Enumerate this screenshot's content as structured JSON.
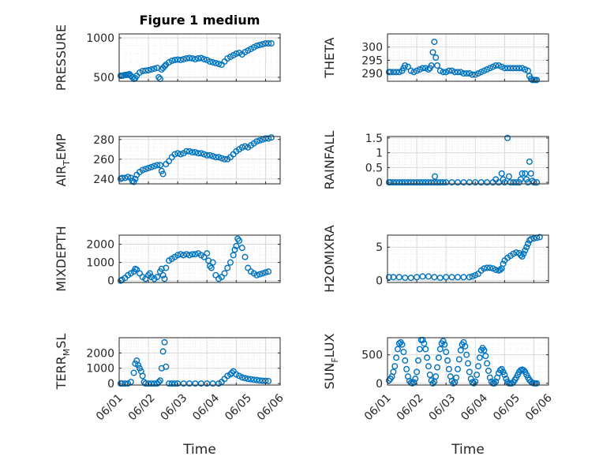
{
  "chart_data": [
    {
      "type": "scatter",
      "title": "Figure 1 medium",
      "ylabel": "PRESSURE",
      "xlabel": "",
      "ylim": [
        450,
        1050
      ],
      "yticks": [
        500,
        1000
      ],
      "grid": true,
      "x": [
        0.05,
        0.1,
        0.15,
        0.2,
        0.25,
        0.3,
        0.35,
        0.4,
        0.45,
        0.5,
        0.55,
        0.6,
        0.7,
        0.8,
        0.9,
        1.0,
        1.1,
        1.2,
        1.3,
        1.35,
        1.4,
        1.45,
        1.5,
        1.55,
        1.6,
        1.7,
        1.8,
        1.9,
        2.0,
        2.1,
        2.2,
        2.3,
        2.4,
        2.5,
        2.6,
        2.7,
        2.8,
        2.9,
        3.0,
        3.1,
        3.2,
        3.3,
        3.4,
        3.5,
        3.6,
        3.7,
        3.8,
        3.9,
        4.0,
        4.1,
        4.2,
        4.3,
        4.4,
        4.5,
        4.6,
        4.7,
        4.8,
        4.9,
        5.0,
        5.1,
        5.2
      ],
      "y": [
        520,
        520,
        525,
        530,
        530,
        535,
        540,
        520,
        500,
        480,
        490,
        520,
        560,
        580,
        585,
        590,
        600,
        610,
        620,
        500,
        480,
        600,
        620,
        640,
        660,
        690,
        710,
        720,
        725,
        720,
        730,
        740,
        745,
        740,
        730,
        740,
        745,
        730,
        720,
        700,
        690,
        680,
        670,
        660,
        700,
        740,
        760,
        780,
        800,
        810,
        790,
        820,
        840,
        860,
        880,
        900,
        910,
        920,
        930,
        930,
        930
      ],
      "series": [
        {
          "color": "#0072BD"
        }
      ]
    },
    {
      "type": "scatter",
      "ylabel": "THETA",
      "xlabel": "",
      "ylim": [
        287,
        305
      ],
      "yticks": [
        290,
        295,
        300
      ],
      "grid": true,
      "x": [
        0.05,
        0.1,
        0.2,
        0.3,
        0.4,
        0.5,
        0.55,
        0.6,
        0.7,
        0.8,
        0.9,
        1.0,
        1.1,
        1.2,
        1.3,
        1.4,
        1.45,
        1.5,
        1.55,
        1.6,
        1.65,
        1.7,
        1.8,
        1.9,
        2.0,
        2.1,
        2.2,
        2.3,
        2.4,
        2.5,
        2.6,
        2.7,
        2.8,
        2.9,
        3.0,
        3.1,
        3.2,
        3.3,
        3.4,
        3.5,
        3.6,
        3.7,
        3.8,
        3.9,
        4.0,
        4.1,
        4.2,
        4.3,
        4.4,
        4.5,
        4.6,
        4.7,
        4.8,
        4.85,
        4.9,
        4.95,
        5.0,
        5.05,
        5.1
      ],
      "y": [
        290.5,
        290.5,
        290.5,
        290.5,
        290.5,
        291,
        292,
        293,
        292.5,
        291,
        290.5,
        291,
        291.5,
        292,
        292,
        291.5,
        292,
        293,
        298,
        302,
        296,
        293,
        291,
        290.5,
        290.5,
        291,
        291,
        290.5,
        290.5,
        290.5,
        290,
        290,
        290,
        289.5,
        289.5,
        290,
        290.5,
        291,
        291.5,
        292,
        292.5,
        293,
        293,
        292.5,
        292,
        292,
        292,
        292,
        292,
        292,
        292,
        291.5,
        291,
        289,
        288,
        287.5,
        287.5,
        287.5,
        287.5
      ],
      "series": [
        {
          "color": "#0072BD"
        }
      ]
    },
    {
      "type": "scatter",
      "ylabel": "AIR",
      "ylabel_sub": "T",
      "ylabel_rest": "EMP",
      "xlabel": "",
      "ylim": [
        235,
        283
      ],
      "yticks": [
        240,
        260,
        280
      ],
      "grid": true,
      "x": [
        0.05,
        0.1,
        0.2,
        0.3,
        0.4,
        0.45,
        0.5,
        0.55,
        0.6,
        0.7,
        0.8,
        0.9,
        1.0,
        1.1,
        1.2,
        1.3,
        1.4,
        1.45,
        1.5,
        1.6,
        1.7,
        1.8,
        1.9,
        2.0,
        2.1,
        2.2,
        2.3,
        2.4,
        2.5,
        2.6,
        2.7,
        2.8,
        2.9,
        3.0,
        3.1,
        3.2,
        3.3,
        3.4,
        3.5,
        3.6,
        3.7,
        3.8,
        3.9,
        4.0,
        4.1,
        4.2,
        4.3,
        4.4,
        4.5,
        4.6,
        4.7,
        4.8,
        4.9,
        5.0,
        5.1,
        5.2
      ],
      "y": [
        240,
        241,
        241,
        242,
        241,
        238,
        237,
        240,
        244,
        247,
        249,
        250,
        251,
        252,
        253,
        254,
        254,
        248,
        245,
        255,
        258,
        262,
        265,
        266,
        265,
        266,
        268,
        268,
        267,
        267,
        266,
        266,
        265,
        264,
        264,
        263,
        262,
        262,
        261,
        260,
        260,
        262,
        265,
        268,
        270,
        272,
        273,
        272,
        274,
        276,
        278,
        279,
        280,
        281,
        281,
        282
      ],
      "series": [
        {
          "color": "#0072BD"
        }
      ]
    },
    {
      "type": "scatter",
      "ylabel": "RAINFALL",
      "xlabel": "",
      "ylim": [
        -0.05,
        1.55
      ],
      "yticks": [
        0,
        0.5,
        1,
        1.5
      ],
      "grid": true,
      "x": [
        0.05,
        0.1,
        0.2,
        0.3,
        0.4,
        0.5,
        0.6,
        0.7,
        0.8,
        0.9,
        1.0,
        1.1,
        1.2,
        1.3,
        1.4,
        1.5,
        1.6,
        1.62,
        1.7,
        1.8,
        1.9,
        2.0,
        2.2,
        2.4,
        2.6,
        2.8,
        3.0,
        3.2,
        3.4,
        3.6,
        3.7,
        3.8,
        3.9,
        3.95,
        4.0,
        4.1,
        4.15,
        4.2,
        4.3,
        4.4,
        4.5,
        4.55,
        4.6,
        4.7,
        4.75,
        4.8,
        4.85,
        4.9,
        4.95,
        5.0,
        5.1
      ],
      "y": [
        0,
        0,
        0,
        0,
        0,
        0,
        0,
        0,
        0,
        0,
        0,
        0,
        0,
        0,
        0,
        0,
        0,
        0.2,
        0,
        0,
        0,
        0,
        0,
        0,
        0,
        0,
        0,
        0,
        0,
        0,
        0.1,
        0,
        0.3,
        0.1,
        0,
        1.5,
        0.2,
        0,
        0,
        0,
        0,
        0.1,
        0.3,
        0.3,
        0.1,
        0,
        0.7,
        0.3,
        0.05,
        0,
        0
      ],
      "series": [
        {
          "color": "#0072BD"
        }
      ]
    },
    {
      "type": "scatter",
      "ylabel": "MIXDEPTH",
      "xlabel": "",
      "ylim": [
        -100,
        2500
      ],
      "yticks": [
        0,
        1000,
        2000
      ],
      "grid": true,
      "x": [
        0.05,
        0.1,
        0.2,
        0.3,
        0.4,
        0.5,
        0.55,
        0.6,
        0.7,
        0.8,
        0.9,
        1.0,
        1.05,
        1.1,
        1.2,
        1.3,
        1.4,
        1.45,
        1.5,
        1.55,
        1.6,
        1.7,
        1.8,
        1.9,
        2.0,
        2.1,
        2.2,
        2.3,
        2.4,
        2.5,
        2.6,
        2.7,
        2.8,
        2.9,
        3.0,
        3.05,
        3.1,
        3.15,
        3.2,
        3.3,
        3.4,
        3.5,
        3.6,
        3.7,
        3.8,
        3.9,
        3.95,
        4.0,
        4.05,
        4.1,
        4.2,
        4.3,
        4.4,
        4.5,
        4.6,
        4.7,
        4.8,
        4.9,
        5.0,
        5.1
      ],
      "y": [
        0,
        50,
        150,
        300,
        400,
        500,
        650,
        600,
        400,
        200,
        100,
        300,
        400,
        200,
        100,
        200,
        500,
        650,
        300,
        100,
        700,
        1100,
        1200,
        1300,
        1400,
        1450,
        1400,
        1450,
        1400,
        1450,
        1450,
        1500,
        1400,
        1300,
        1500,
        1100,
        800,
        700,
        1000,
        300,
        100,
        200,
        400,
        700,
        1000,
        1400,
        1700,
        1900,
        2300,
        2200,
        1800,
        1300,
        700,
        500,
        400,
        300,
        350,
        400,
        450,
        500
      ],
      "series": [
        {
          "color": "#0072BD"
        }
      ]
    },
    {
      "type": "scatter",
      "ylabel": "H2OMIXRA",
      "xlabel": "",
      "ylim": [
        -0.3,
        6.8
      ],
      "yticks": [
        0,
        5
      ],
      "grid": true,
      "x": [
        0.05,
        0.2,
        0.4,
        0.6,
        0.8,
        1.0,
        1.2,
        1.4,
        1.6,
        1.8,
        2.0,
        2.2,
        2.4,
        2.6,
        2.8,
        2.9,
        3.0,
        3.1,
        3.2,
        3.3,
        3.4,
        3.5,
        3.6,
        3.7,
        3.8,
        3.85,
        3.9,
        3.95,
        4.0,
        4.1,
        4.2,
        4.3,
        4.4,
        4.5,
        4.55,
        4.6,
        4.65,
        4.7,
        4.75,
        4.8,
        4.85,
        4.9,
        5.0,
        5.1,
        5.2
      ],
      "y": [
        0.5,
        0.5,
        0.5,
        0.4,
        0.4,
        0.5,
        0.6,
        0.6,
        0.5,
        0.4,
        0.5,
        0.5,
        0.5,
        0.5,
        0.5,
        0.6,
        0.8,
        1.0,
        1.5,
        1.8,
        1.9,
        1.9,
        1.8,
        1.6,
        1.5,
        1.6,
        1.8,
        2.5,
        3.0,
        3.4,
        3.7,
        4.0,
        4.2,
        4.1,
        3.8,
        3.6,
        4.0,
        4.5,
        5.0,
        5.5,
        6.0,
        6.2,
        6.3,
        6.4,
        6.5
      ],
      "series": [
        {
          "color": "#0072BD"
        }
      ]
    },
    {
      "type": "scatter",
      "ylabel": "TERR",
      "ylabel_sub": "M",
      "ylabel_rest": "SL",
      "xlabel": "Time",
      "xticklabels": [
        "06/01",
        "06/02",
        "06/03",
        "06/04",
        "06/05",
        "06/06"
      ],
      "ylim": [
        -100,
        3000
      ],
      "yticks": [
        0,
        1000,
        2000
      ],
      "grid": true,
      "x": [
        0.05,
        0.1,
        0.2,
        0.3,
        0.4,
        0.5,
        0.55,
        0.6,
        0.65,
        0.7,
        0.75,
        0.8,
        0.85,
        0.9,
        1.0,
        1.1,
        1.2,
        1.3,
        1.35,
        1.4,
        1.45,
        1.5,
        1.55,
        1.6,
        1.7,
        1.8,
        1.9,
        2.0,
        2.2,
        2.4,
        2.6,
        2.8,
        3.0,
        3.2,
        3.4,
        3.5,
        3.6,
        3.7,
        3.8,
        3.85,
        3.9,
        4.0,
        4.1,
        4.2,
        4.3,
        4.4,
        4.5,
        4.6,
        4.7,
        4.8,
        4.9,
        5.0,
        5.1
      ],
      "y": [
        0,
        0,
        0,
        0,
        100,
        700,
        1300,
        1500,
        1200,
        1000,
        800,
        500,
        100,
        0,
        0,
        0,
        0,
        0,
        100,
        200,
        1000,
        2100,
        2700,
        1100,
        0,
        0,
        0,
        0,
        0,
        0,
        0,
        0,
        0,
        0,
        0,
        100,
        300,
        500,
        600,
        700,
        800,
        600,
        500,
        400,
        350,
        300,
        280,
        250,
        230,
        200,
        180,
        170,
        160
      ],
      "series": [
        {
          "color": "#0072BD"
        }
      ]
    },
    {
      "type": "scatter",
      "ylabel": "SUN",
      "ylabel_sub": "F",
      "ylabel_rest": "LUX",
      "xlabel": "Time",
      "xticklabels": [
        "06/01",
        "06/02",
        "06/03",
        "06/04",
        "06/05",
        "06/06"
      ],
      "ylim": [
        -30,
        800
      ],
      "yticks": [
        0,
        500
      ],
      "grid": true,
      "x": [
        0.05,
        0.1,
        0.15,
        0.2,
        0.25,
        0.3,
        0.35,
        0.4,
        0.45,
        0.5,
        0.55,
        0.6,
        0.65,
        0.7,
        0.75,
        0.8,
        0.85,
        0.9,
        0.95,
        1.0,
        1.05,
        1.1,
        1.15,
        1.2,
        1.25,
        1.3,
        1.35,
        1.4,
        1.45,
        1.5,
        1.55,
        1.6,
        1.65,
        1.7,
        1.75,
        1.8,
        1.85,
        1.9,
        1.95,
        2.0,
        2.05,
        2.1,
        2.15,
        2.2,
        2.25,
        2.3,
        2.35,
        2.4,
        2.45,
        2.5,
        2.55,
        2.6,
        2.65,
        2.7,
        2.75,
        2.8,
        2.85,
        2.9,
        2.95,
        3.0,
        3.05,
        3.1,
        3.15,
        3.2,
        3.25,
        3.3,
        3.35,
        3.4,
        3.45,
        3.5,
        3.55,
        3.6,
        3.65,
        3.7,
        3.75,
        3.8,
        3.85,
        3.9,
        3.95,
        4.0,
        4.05,
        4.1,
        4.15,
        4.2,
        4.25,
        4.3,
        4.35,
        4.4,
        4.45,
        4.5,
        4.55,
        4.6,
        4.65,
        4.7,
        4.75,
        4.8,
        4.85,
        4.9,
        4.95,
        5.0,
        5.05,
        5.1
      ],
      "y": [
        50,
        80,
        120,
        200,
        300,
        450,
        600,
        700,
        720,
        680,
        550,
        400,
        250,
        120,
        40,
        10,
        0,
        20,
        80,
        200,
        400,
        600,
        760,
        760,
        700,
        600,
        450,
        300,
        150,
        50,
        0,
        30,
        120,
        280,
        450,
        600,
        700,
        740,
        680,
        550,
        400,
        250,
        120,
        40,
        0,
        20,
        100,
        250,
        420,
        580,
        680,
        720,
        650,
        500,
        350,
        200,
        80,
        20,
        0,
        30,
        150,
        300,
        450,
        580,
        620,
        580,
        480,
        350,
        220,
        100,
        30,
        0,
        0,
        30,
        100,
        180,
        230,
        250,
        200,
        150,
        80,
        30,
        0,
        0,
        0,
        20,
        60,
        100,
        150,
        200,
        230,
        240,
        230,
        200,
        150,
        100,
        60,
        30,
        10,
        0,
        0,
        0
      ],
      "series": [
        {
          "color": "#0072BD"
        }
      ]
    }
  ]
}
